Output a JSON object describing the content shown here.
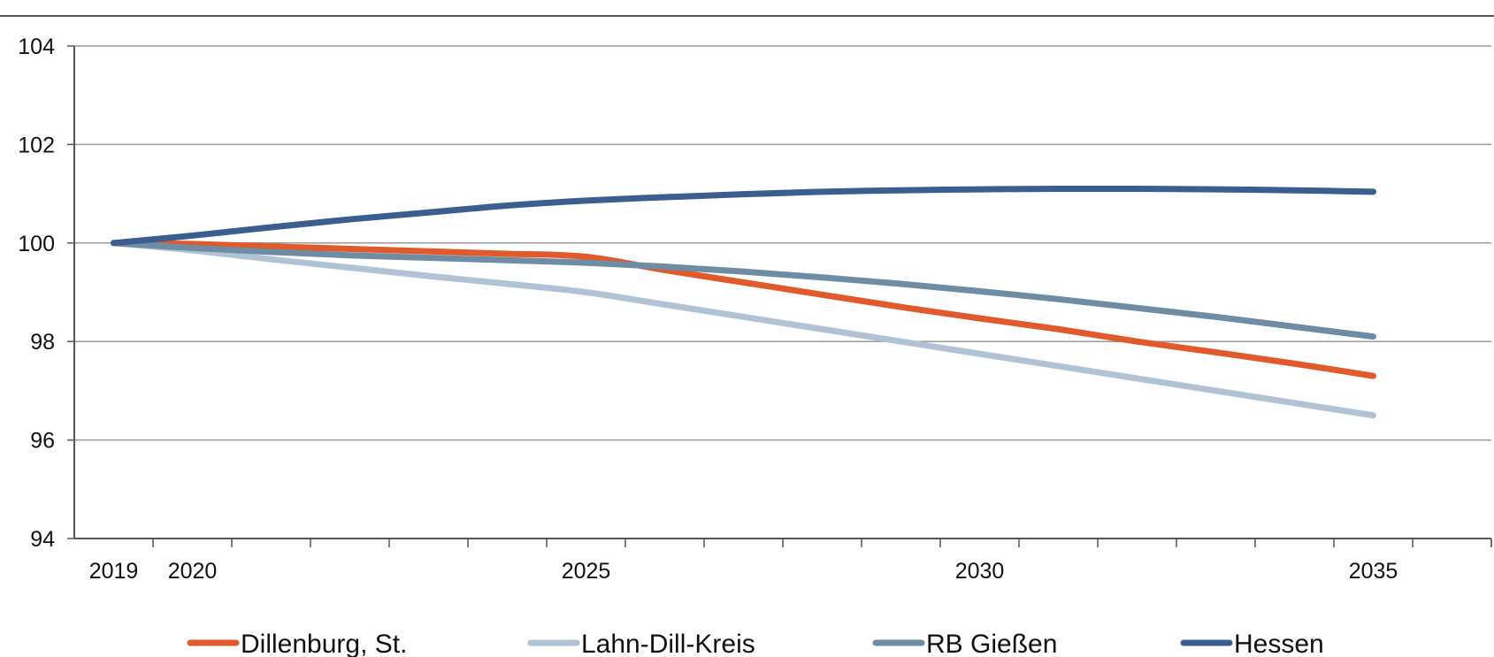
{
  "chart_data": {
    "type": "line",
    "title": "",
    "xlabel": "",
    "ylabel": "",
    "ylim": [
      94,
      104
    ],
    "xlim": [
      2018.5,
      2036.5
    ],
    "grid": true,
    "legend_position": "bottom",
    "y_ticks": [
      "94",
      "96",
      "98",
      "100",
      "102",
      "104"
    ],
    "x_ticks": [
      "2019",
      "2020",
      "2025",
      "2030",
      "2035"
    ],
    "x": [
      2019,
      2020,
      2021,
      2022,
      2023,
      2024,
      2025,
      2026,
      2027,
      2028,
      2029,
      2030,
      2031,
      2032,
      2033,
      2034,
      2035
    ],
    "series": [
      {
        "name": "Dillenburg, St.",
        "color": "#E05A2B",
        "values": [
          100.0,
          99.98,
          99.93,
          99.88,
          99.83,
          99.78,
          99.72,
          99.45,
          99.2,
          98.95,
          98.7,
          98.47,
          98.25,
          98.0,
          97.78,
          97.55,
          97.3
        ]
      },
      {
        "name": "Lahn-Dill-Kreis",
        "color": "#B0C3D5",
        "values": [
          100.0,
          99.85,
          99.67,
          99.5,
          99.33,
          99.17,
          99.0,
          98.75,
          98.5,
          98.25,
          98.0,
          97.75,
          97.5,
          97.25,
          97.0,
          96.75,
          96.5
        ]
      },
      {
        "name": "RB Gießen",
        "color": "#6E8CA4",
        "values": [
          100.0,
          99.9,
          99.82,
          99.75,
          99.7,
          99.65,
          99.6,
          99.52,
          99.42,
          99.3,
          99.17,
          99.02,
          98.86,
          98.68,
          98.5,
          98.3,
          98.1
        ]
      },
      {
        "name": "Hessen",
        "color": "#3B5E8E",
        "values": [
          100.0,
          100.15,
          100.32,
          100.48,
          100.62,
          100.76,
          100.86,
          100.93,
          100.99,
          101.04,
          101.07,
          101.09,
          101.1,
          101.1,
          101.09,
          101.07,
          101.04
        ]
      }
    ]
  }
}
